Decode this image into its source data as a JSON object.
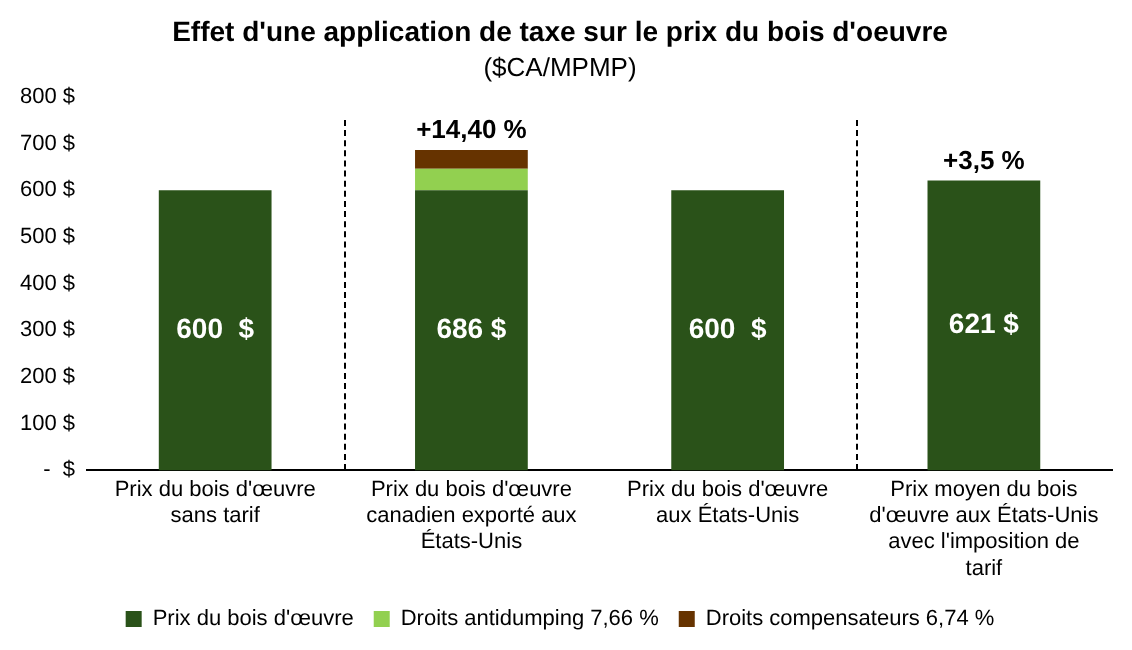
{
  "chart_data": {
    "type": "bar",
    "title": "Effet d'une application de taxe sur le prix du bois d'oeuvre",
    "subtitle": "($CA/MPMP)",
    "categories": [
      "Prix du bois d'œuvre sans tarif",
      "Prix du bois d'œuvre canadien exporté aux États-Unis",
      "Prix du bois d'œuvre aux États-Unis",
      "Prix moyen du bois d'œuvre aux États-Unis avec l'imposition de tarif"
    ],
    "stacked": true,
    "series": [
      {
        "name": "Prix du bois d'œuvre",
        "color": "#2a5219",
        "values": [
          600,
          600,
          600,
          621
        ]
      },
      {
        "name": "Droits antidumping 7,66 %",
        "color": "#92d050",
        "values": [
          null,
          46,
          null,
          null
        ]
      },
      {
        "name": "Droits compensateurs 6,74 %",
        "color": "#663300",
        "values": [
          null,
          40,
          null,
          null
        ]
      }
    ],
    "totals": [
      "600  $",
      "686 $",
      "600  $",
      "621 $"
    ],
    "annotations": [
      {
        "text": "+14,40 %",
        "x": "Prix du bois d'œuvre canadien exporté aux États-Unis",
        "y": 686
      },
      {
        "text": "+3,5 %",
        "x": "Prix moyen du bois d'œuvre aux États-Unis avec l'imposition de tarif",
        "y": 621
      }
    ],
    "ylim": [
      0,
      800
    ],
    "yticks": [
      {
        "value": 0,
        "label": "-  $"
      },
      {
        "value": 100,
        "label": "100 $"
      },
      {
        "value": 200,
        "label": "200 $"
      },
      {
        "value": 300,
        "label": "300 $"
      },
      {
        "value": 400,
        "label": "400 $"
      },
      {
        "value": 500,
        "label": "500 $"
      },
      {
        "value": 600,
        "label": "600 $"
      },
      {
        "value": 700,
        "label": "700 $"
      },
      {
        "value": 800,
        "label": "800 $"
      }
    ],
    "grid": false,
    "legend": "bottom"
  }
}
